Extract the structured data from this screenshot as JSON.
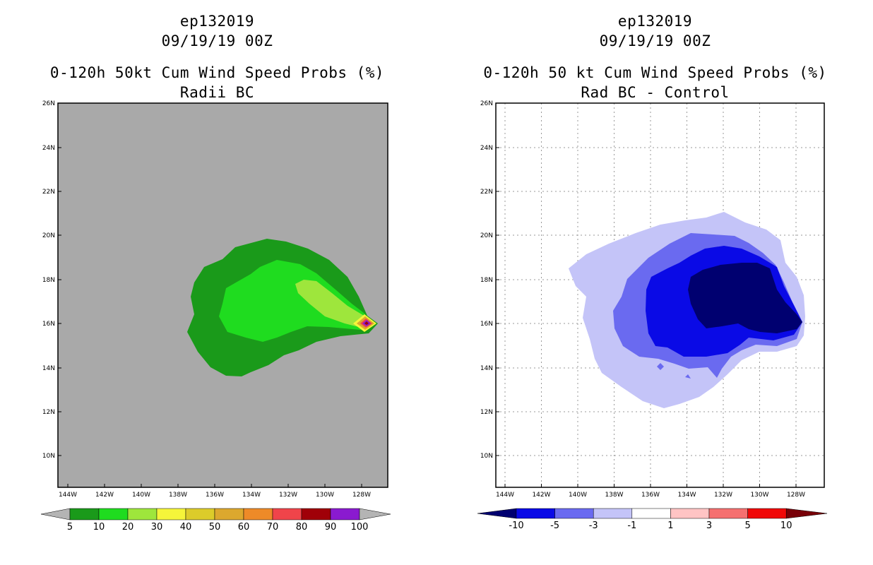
{
  "left_panel": {
    "storm_id": "ep132019",
    "datetime": "09/19/19 00Z",
    "title": "0-120h 50kt Cum Wind Speed Probs (%)",
    "subtitle": "Radii BC",
    "lat_labels": [
      "26N",
      "24N",
      "22N",
      "20N",
      "18N",
      "16N",
      "14N",
      "12N",
      "10N"
    ],
    "lon_labels": [
      "144W",
      "142W",
      "140W",
      "138W",
      "136W",
      "134W",
      "132W",
      "130W",
      "128W"
    ],
    "colorbar": {
      "labels": [
        "5",
        "10",
        "20",
        "30",
        "40",
        "50",
        "60",
        "70",
        "80",
        "90",
        "100"
      ],
      "colors": [
        "#1a9a1a",
        "#1fdc1f",
        "#9ee63c",
        "#f5f53a",
        "#dccc2a",
        "#dca82e",
        "#ee8a28",
        "#f0444a",
        "#a00008",
        "#8a1ad0"
      ],
      "extend_color": "#b4b4b4"
    },
    "background_color": "#a9a9a9"
  },
  "right_panel": {
    "storm_id": "ep132019",
    "datetime": "09/19/19 00Z",
    "title": "0-120h 50 kt Cum Wind Speed Probs (%)",
    "subtitle": "Rad BC - Control",
    "lat_labels": [
      "26N",
      "24N",
      "22N",
      "20N",
      "18N",
      "16N",
      "14N",
      "12N",
      "10N"
    ],
    "lon_labels": [
      "144W",
      "142W",
      "140W",
      "138W",
      "136W",
      "134W",
      "132W",
      "130W",
      "128W"
    ],
    "colorbar": {
      "labels": [
        "-10",
        "-5",
        "-3",
        "-1",
        "1",
        "3",
        "5",
        "10"
      ],
      "colors": [
        "#0a0ae6",
        "#6a6af0",
        "#c4c4f8",
        "#ffffff",
        "#ffc4c4",
        "#f57070",
        "#f00808"
      ],
      "low_extend_color": "#000070",
      "high_extend_color": "#780008"
    }
  }
}
